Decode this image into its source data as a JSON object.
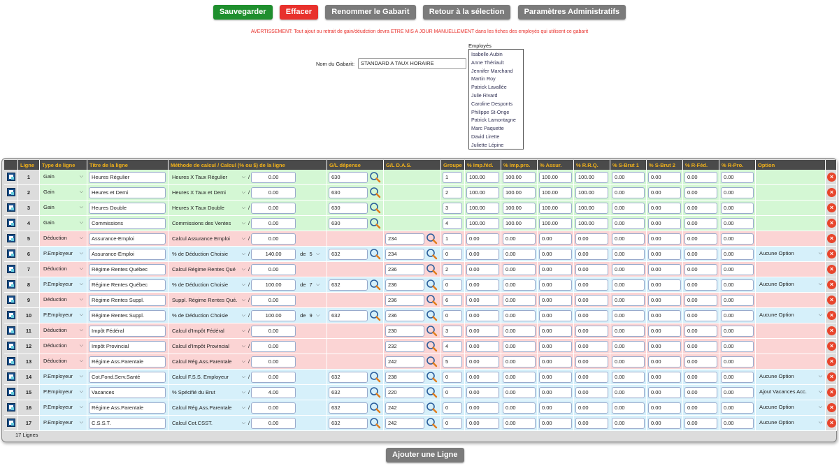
{
  "toolbar": {
    "save": "Sauvegarder",
    "erase": "Effacer",
    "rename": "Renommer le Gabarit",
    "back": "Retour à la sélection",
    "admin": "Paramètres Administratifs"
  },
  "warning": "AVERTISSEMENT: Tout ajout ou retrait de gain/déudction devra ETRE MIS A JOUR MANUELLEMENT dans les fiches des employés qui utilisent ce gabarit",
  "gabarit": {
    "label": "Nom du Gabarit:",
    "value": "STANDARD A TAUX HORAIRE"
  },
  "employees": {
    "title": "Employés",
    "items": [
      "Isabelle Aubin",
      "Anne Thériault",
      "Jennifer Marchand",
      "Martin Roy",
      "Patrick Lavallée",
      "Julie Rivard",
      "Caroline Desponts",
      "Philippe St-Onge",
      "Patrick Lamontagne",
      "Marc Paquette",
      "David Lirette",
      "Juliette Lépine"
    ]
  },
  "columns": [
    "Ligne",
    "Type de ligne",
    "Titre de la ligne",
    "Méthode de calcul / Calcul (% ou $) de la ligne",
    "G/L dépense",
    "G/L D.A.S.",
    "Groupe",
    "% Imp.féd.",
    "% Imp.pro.",
    "% Assur.",
    "% R.R.Q.",
    "% S-Brut 1",
    "% S-Brut 2",
    "% R-Féd.",
    "% R-Pro.",
    "Option"
  ],
  "rows": [
    {
      "n": "1",
      "kind": "gain",
      "type": "Gain",
      "title": "Heures Régulier",
      "method": "Heures X Taux Régulier",
      "calc": "0.00",
      "de": "",
      "gldep": "630",
      "gldas": "",
      "groupe": "1",
      "p": [
        "100.00",
        "100.00",
        "100.00",
        "100.00",
        "0.00",
        "0.00",
        "0.00",
        "0.00"
      ],
      "option": ""
    },
    {
      "n": "2",
      "kind": "gain",
      "type": "Gain",
      "title": "Heures et Demi",
      "method": "Heures X Taux et Demi",
      "calc": "0.00",
      "de": "",
      "gldep": "630",
      "gldas": "",
      "groupe": "2",
      "p": [
        "100.00",
        "100.00",
        "100.00",
        "100.00",
        "0.00",
        "0.00",
        "0.00",
        "0.00"
      ],
      "option": ""
    },
    {
      "n": "3",
      "kind": "gain",
      "type": "Gain",
      "title": "Heures Double",
      "method": "Heures X Taux Double",
      "calc": "0.00",
      "de": "",
      "gldep": "630",
      "gldas": "",
      "groupe": "3",
      "p": [
        "100.00",
        "100.00",
        "100.00",
        "100.00",
        "0.00",
        "0.00",
        "0.00",
        "0.00"
      ],
      "option": ""
    },
    {
      "n": "4",
      "kind": "gain",
      "type": "Gain",
      "title": "Commissions",
      "method": "Commissions des Ventes",
      "calc": "0.00",
      "de": "",
      "gldep": "630",
      "gldas": "",
      "groupe": "4",
      "p": [
        "100.00",
        "100.00",
        "100.00",
        "100.00",
        "0.00",
        "0.00",
        "0.00",
        "0.00"
      ],
      "option": ""
    },
    {
      "n": "5",
      "kind": "deduc",
      "type": "Déduction",
      "title": "Assurance-Emploi",
      "method": "Calcul Assurance Emploi",
      "calc": "0.00",
      "de": "",
      "gldep": "",
      "gldas": "234",
      "groupe": "1",
      "p": [
        "0.00",
        "0.00",
        "0.00",
        "0.00",
        "0.00",
        "0.00",
        "0.00",
        "0.00"
      ],
      "option": ""
    },
    {
      "n": "6",
      "kind": "emp",
      "type": "P.Employeur",
      "title": "Assurance-Emploi",
      "method": "% de Déduction Choisie",
      "calc": "140.00",
      "de": "5",
      "gldep": "632",
      "gldas": "234",
      "groupe": "0",
      "p": [
        "0.00",
        "0.00",
        "0.00",
        "0.00",
        "0.00",
        "0.00",
        "0.00",
        "0.00"
      ],
      "option": "Aucune Option"
    },
    {
      "n": "7",
      "kind": "deduc",
      "type": "Déduction",
      "title": "Régime Rentes Québec",
      "method": "Calcul Régime Rentes Qué",
      "calc": "0.00",
      "de": "",
      "gldep": "",
      "gldas": "236",
      "groupe": "2",
      "p": [
        "0.00",
        "0.00",
        "0.00",
        "0.00",
        "0.00",
        "0.00",
        "0.00",
        "0.00"
      ],
      "option": ""
    },
    {
      "n": "8",
      "kind": "emp",
      "type": "P.Employeur",
      "title": "Régime Rentes Québec",
      "method": "% de Déduction Choisie",
      "calc": "100.00",
      "de": "7",
      "gldep": "632",
      "gldas": "236",
      "groupe": "0",
      "p": [
        "0.00",
        "0.00",
        "0.00",
        "0.00",
        "0.00",
        "0.00",
        "0.00",
        "0.00"
      ],
      "option": "Aucune Option"
    },
    {
      "n": "9",
      "kind": "deduc",
      "type": "Déduction",
      "title": "Régime Rentes Suppl.",
      "method": "Suppl. Régime Rentes Qué.",
      "calc": "0.00",
      "de": "",
      "gldep": "",
      "gldas": "236",
      "groupe": "6",
      "p": [
        "0.00",
        "0.00",
        "0.00",
        "0.00",
        "0.00",
        "0.00",
        "0.00",
        "0.00"
      ],
      "option": ""
    },
    {
      "n": "10",
      "kind": "emp",
      "type": "P.Employeur",
      "title": "Régime Rentes Suppl.",
      "method": "% de Déduction Choisie",
      "calc": "100.00",
      "de": "9",
      "gldep": "632",
      "gldas": "236",
      "groupe": "0",
      "p": [
        "0.00",
        "0.00",
        "0.00",
        "0.00",
        "0.00",
        "0.00",
        "0.00",
        "0.00"
      ],
      "option": "Aucune Option"
    },
    {
      "n": "11",
      "kind": "deduc",
      "type": "Déduction",
      "title": "Impôt Fédéral",
      "method": "Calcul d'Impôt Fédéral",
      "calc": "0.00",
      "de": "",
      "gldep": "",
      "gldas": "230",
      "groupe": "3",
      "p": [
        "0.00",
        "0.00",
        "0.00",
        "0.00",
        "0.00",
        "0.00",
        "0.00",
        "0.00"
      ],
      "option": ""
    },
    {
      "n": "12",
      "kind": "deduc",
      "type": "Déduction",
      "title": "Impôt Provincial",
      "method": "Calcul d'Impôt Provincial",
      "calc": "0.00",
      "de": "",
      "gldep": "",
      "gldas": "232",
      "groupe": "4",
      "p": [
        "0.00",
        "0.00",
        "0.00",
        "0.00",
        "0.00",
        "0.00",
        "0.00",
        "0.00"
      ],
      "option": ""
    },
    {
      "n": "13",
      "kind": "deduc",
      "type": "Déduction",
      "title": "Régime Ass.Parentale",
      "method": "Calcul Rég.Ass.Parentale",
      "calc": "0.00",
      "de": "",
      "gldep": "",
      "gldas": "242",
      "groupe": "5",
      "p": [
        "0.00",
        "0.00",
        "0.00",
        "0.00",
        "0.00",
        "0.00",
        "0.00",
        "0.00"
      ],
      "option": ""
    },
    {
      "n": "14",
      "kind": "emp",
      "type": "P.Employeur",
      "title": "Cot.Fond.Serv.Santé",
      "method": "Calcul F.S.S. Employeur",
      "calc": "0.00",
      "de": "",
      "gldep": "632",
      "gldas": "238",
      "groupe": "0",
      "p": [
        "0.00",
        "0.00",
        "0.00",
        "0.00",
        "0.00",
        "0.00",
        "0.00",
        "0.00"
      ],
      "option": "Aucune Option"
    },
    {
      "n": "15",
      "kind": "emp",
      "type": "P.Employeur",
      "title": "Vacances",
      "method": "% Spécifié du Brut",
      "calc": "4.00",
      "de": "",
      "gldep": "632",
      "gldas": "220",
      "groupe": "0",
      "p": [
        "0.00",
        "0.00",
        "0.00",
        "0.00",
        "0.00",
        "0.00",
        "0.00",
        "0.00"
      ],
      "option": "Ajout Vacances Acc."
    },
    {
      "n": "16",
      "kind": "emp",
      "type": "P.Employeur",
      "title": "Régime Ass.Parentale",
      "method": "Calcul Rég.Ass.Parentale",
      "calc": "0.00",
      "de": "",
      "gldep": "632",
      "gldas": "242",
      "groupe": "0",
      "p": [
        "0.00",
        "0.00",
        "0.00",
        "0.00",
        "0.00",
        "0.00",
        "0.00",
        "0.00"
      ],
      "option": "Aucune Option"
    },
    {
      "n": "17",
      "kind": "emp",
      "type": "P.Employeur",
      "title": "C.S.S.T.",
      "method": "Calcul Cot.CSST.",
      "calc": "0.00",
      "de": "",
      "gldep": "632",
      "gldas": "242",
      "groupe": "0",
      "p": [
        "0.00",
        "0.00",
        "0.00",
        "0.00",
        "0.00",
        "0.00",
        "0.00",
        "0.00"
      ],
      "option": "Aucune Option"
    }
  ],
  "footer": {
    "count": "17 Lignes",
    "add": "Ajouter une Ligne"
  },
  "labels": {
    "de": "de",
    "slash": "/"
  },
  "colors": {
    "gain": "#d4f7d4",
    "deduction": "#fbd4d4",
    "employer": "#d6f0fa",
    "header_text": "#f3b219"
  }
}
